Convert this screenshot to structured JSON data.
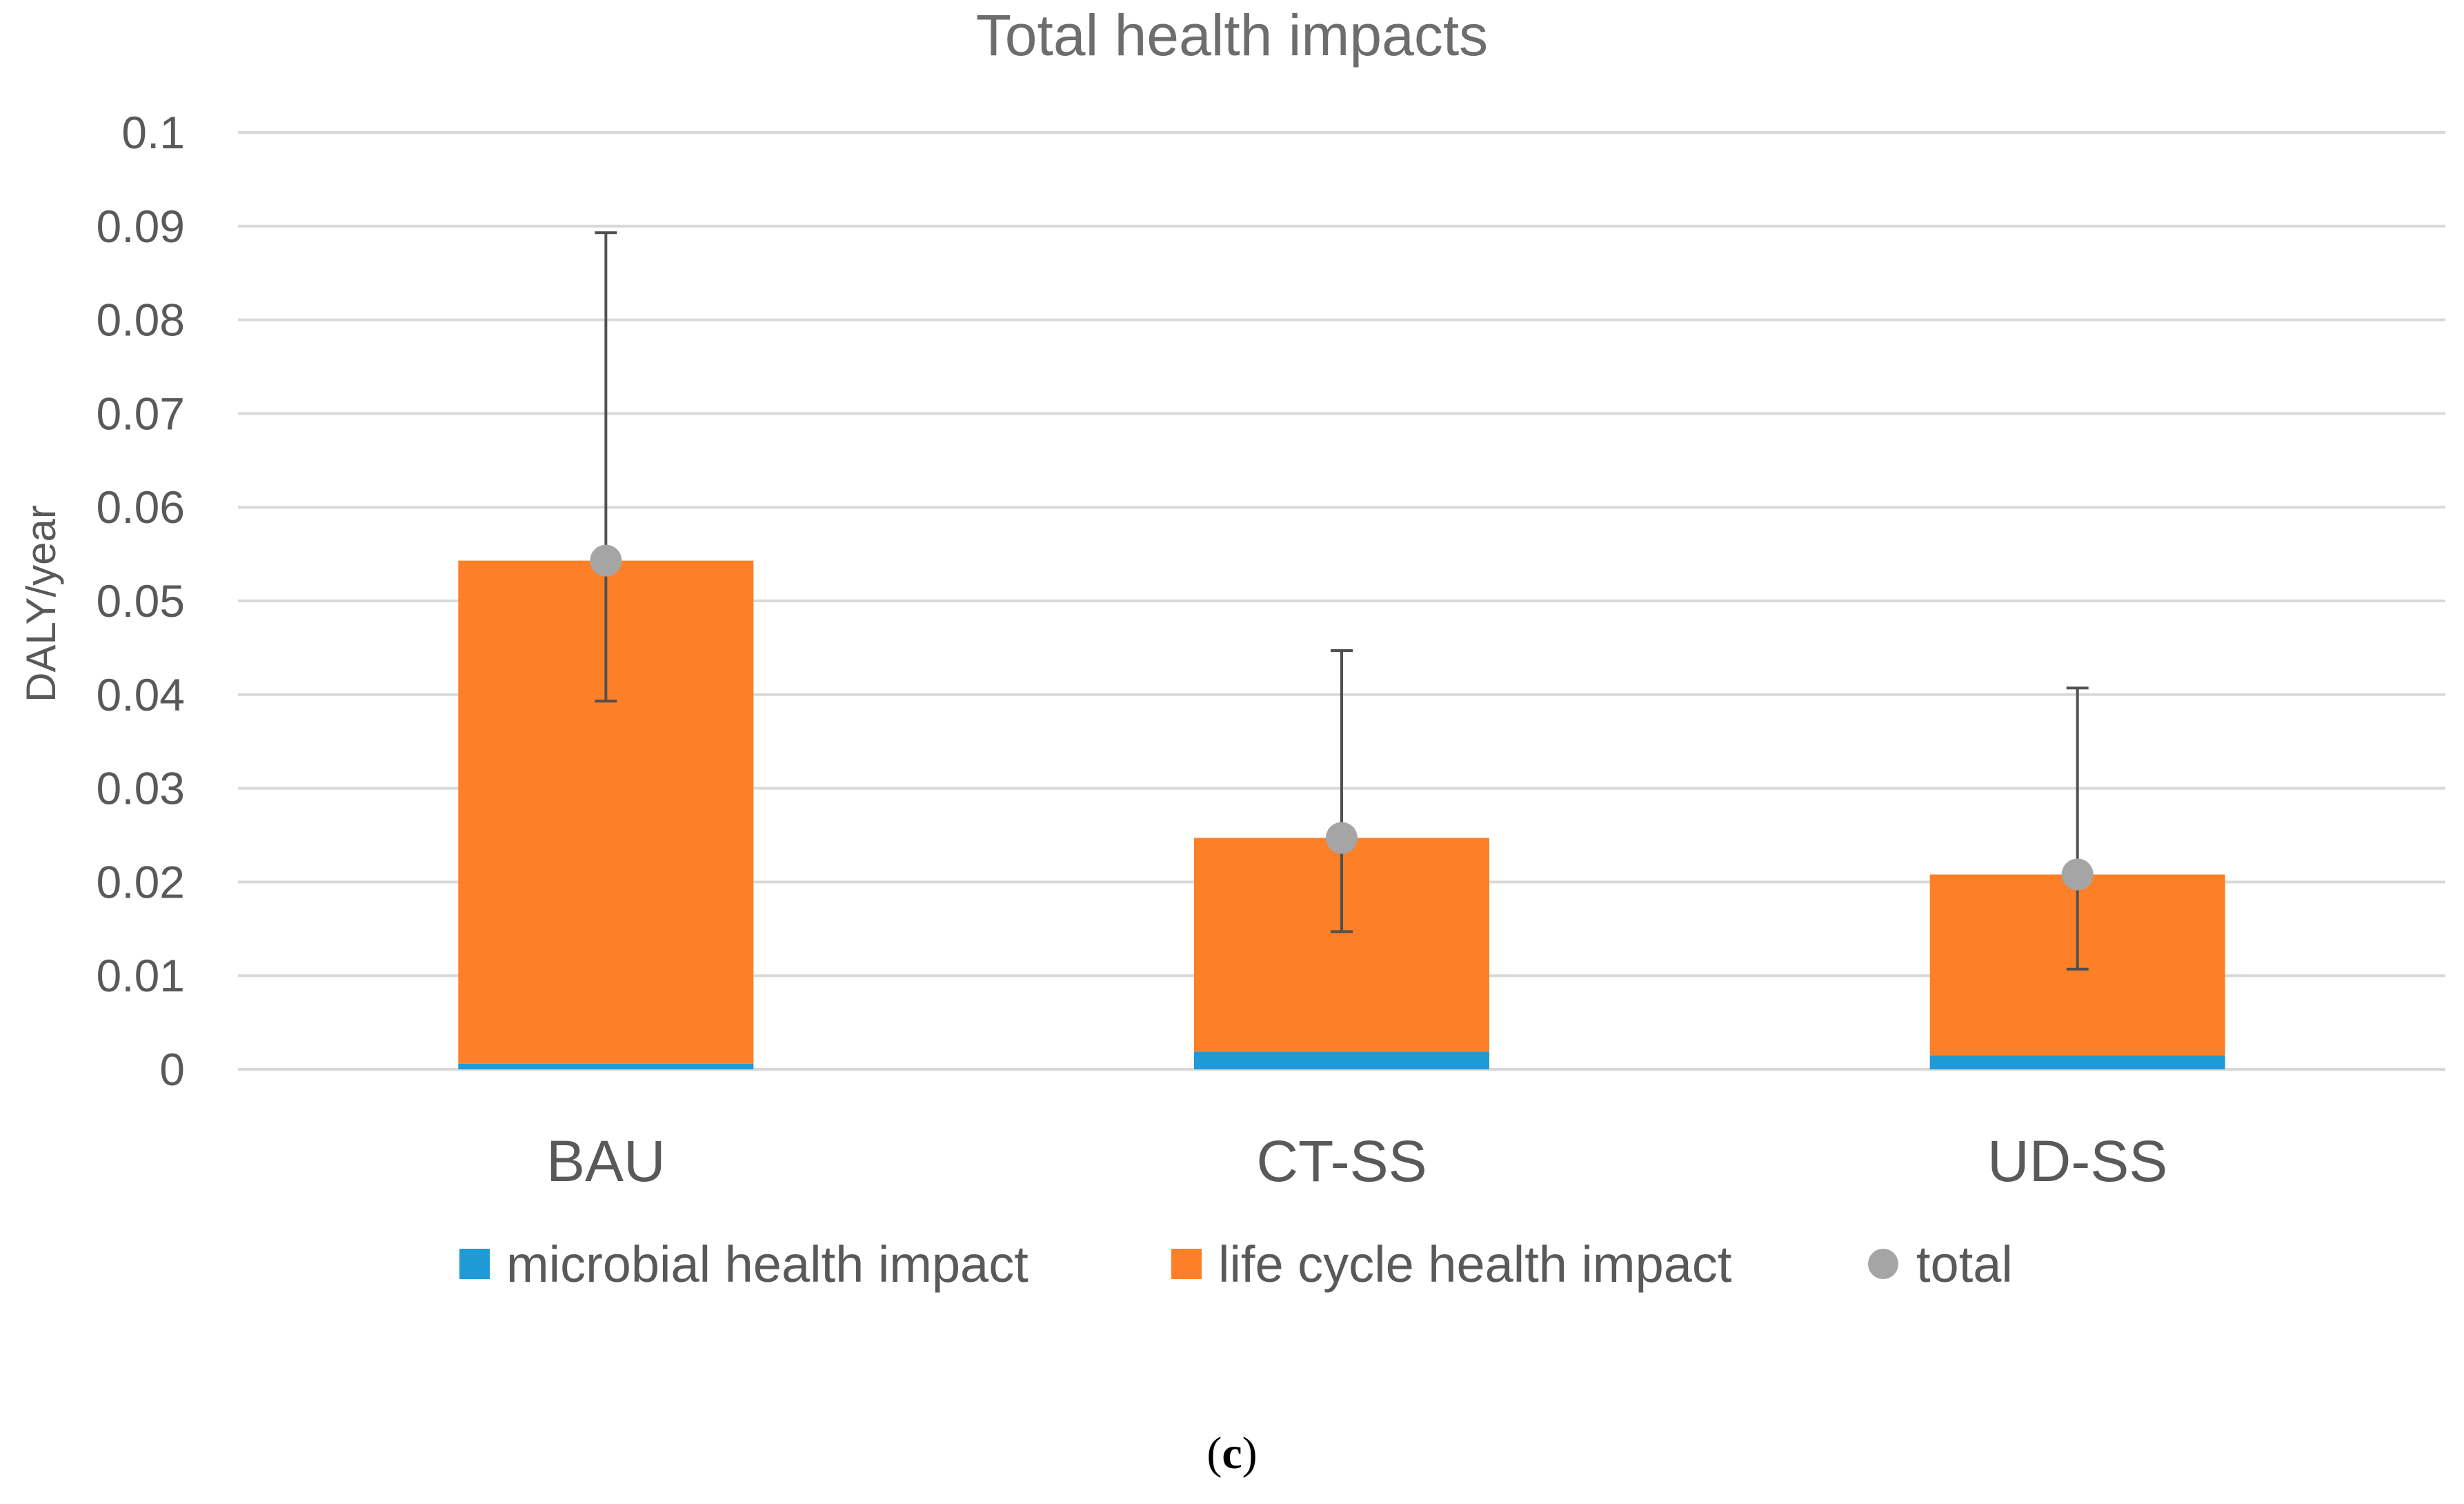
{
  "chart_data": {
    "type": "bar",
    "stacked": true,
    "title": "Total health impacts",
    "xlabel": "",
    "ylabel": "DALY/year",
    "ylim": [
      0,
      0.1
    ],
    "yticks": [
      "0",
      "0.01",
      "0.02",
      "0.03",
      "0.04",
      "0.05",
      "0.06",
      "0.07",
      "0.08",
      "0.09",
      "0.1"
    ],
    "ytick_values": [
      0,
      0.01,
      0.02,
      0.03,
      0.04,
      0.05,
      0.06,
      0.07,
      0.08,
      0.09,
      0.1
    ],
    "grid": true,
    "categories": [
      "BAU",
      "CT-SS",
      "UD-SS"
    ],
    "series": [
      {
        "name": "microbial health impact",
        "color": "#1f9ad6",
        "values": [
          0.0006,
          0.0019,
          0.0015
        ]
      },
      {
        "name": "life cycle health impact",
        "color": "#fd7f27",
        "values": [
          0.0537,
          0.0228,
          0.0193
        ]
      }
    ],
    "totals": {
      "name": "total",
      "color": "#a5a5a5",
      "values": [
        0.0543,
        0.0247,
        0.0208
      ],
      "error_low": [
        0.0393,
        0.0147,
        0.0107
      ],
      "error_high": [
        0.0893,
        0.0447,
        0.0407
      ]
    },
    "legend_position": "bottom"
  },
  "colors": {
    "grid": "#d9d9d9",
    "axis": "#d9d9d9",
    "error_bar": "#505050"
  },
  "caption": {
    "open": "(",
    "letter": "c",
    "close": ")"
  }
}
